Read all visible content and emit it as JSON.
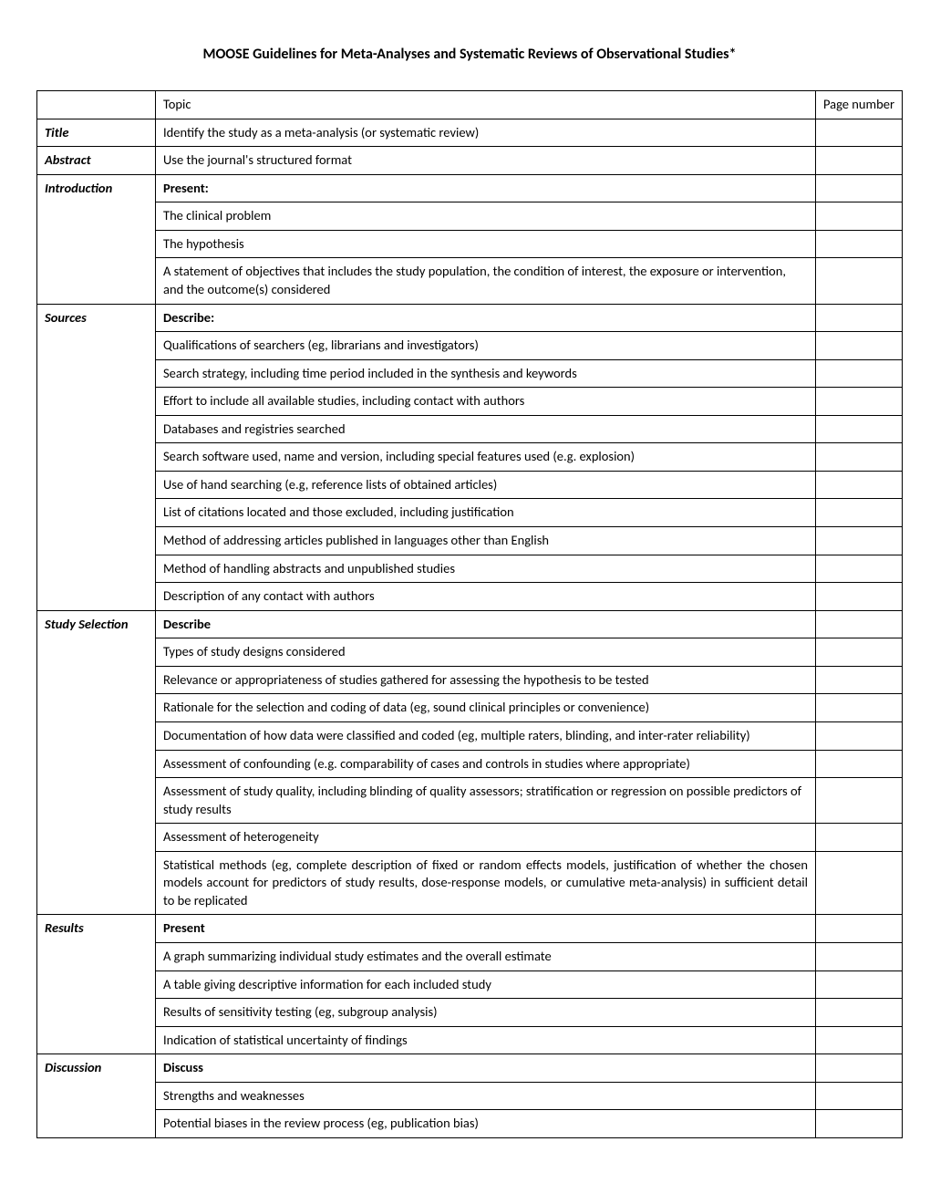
{
  "document": {
    "title": "MOOSE Guidelines for Meta-Analyses and Systematic Reviews of Observational Studies*",
    "header_topic": "Topic",
    "header_page": "Page number",
    "sections": [
      {
        "label": "Title",
        "rows": [
          {
            "text": "Identify the study as a meta-analysis (or systematic review)"
          }
        ]
      },
      {
        "label": "Abstract",
        "rows": [
          {
            "text": "Use the journal's structured format"
          }
        ]
      },
      {
        "label": "Introduction",
        "rows": [
          {
            "text": "Present:",
            "bold": true
          },
          {
            "text": "The clinical problem"
          },
          {
            "text": "The hypothesis"
          },
          {
            "text": "A statement of objectives that includes the study population, the condition of interest, the exposure or intervention, and the outcome(s) considered"
          }
        ]
      },
      {
        "label": "Sources",
        "rows": [
          {
            "text": "Describe:",
            "bold": true
          },
          {
            "text": "Qualifications of searchers (eg, librarians and investigators)"
          },
          {
            "text": "Search strategy, including time period included in the synthesis and keywords"
          },
          {
            "text": "Effort to include all available studies, including contact with authors"
          },
          {
            "text": "Databases and registries searched"
          },
          {
            "text": "Search software used, name and version, including special features used (e.g. explosion)"
          },
          {
            "text": "Use of hand searching (e.g, reference lists of obtained articles)"
          },
          {
            "text": "List of citations located and those excluded, including justification"
          },
          {
            "text": "Method of addressing articles published in languages other than English"
          },
          {
            "text": "Method of handling abstracts and unpublished studies"
          },
          {
            "text": "Description of any contact with authors"
          }
        ]
      },
      {
        "label": "Study Selection",
        "rows": [
          {
            "text": "Describe",
            "bold": true
          },
          {
            "text": "Types of study designs considered"
          },
          {
            "text": "Relevance or appropriateness of studies gathered for assessing the hypothesis to be tested"
          },
          {
            "text": "Rationale for the selection and coding of data (eg, sound clinical principles or convenience)"
          },
          {
            "text": "Documentation of how data were classified and coded (eg, multiple raters, blinding, and inter-rater reliability)"
          },
          {
            "text": "Assessment of confounding (e.g. comparability of cases and controls in studies where appropriate)"
          },
          {
            "text": "Assessment of study quality, including blinding of quality assessors; stratification or regression on possible predictors of study results"
          },
          {
            "text": "Assessment of heterogeneity"
          },
          {
            "text": "Statistical methods (eg, complete description of fixed or random effects models, justification of whether the chosen models account for predictors of study results, dose-response models, or cumulative meta-analysis) in sufficient detail to be replicated",
            "justified": true
          }
        ]
      },
      {
        "label": "Results",
        "rows": [
          {
            "text": "Present",
            "bold": true
          },
          {
            "text": "A graph summarizing individual study estimates and the overall estimate"
          },
          {
            "text": "A table giving descriptive information for each included study"
          },
          {
            "text": "Results of sensitivity testing (eg, subgroup analysis)"
          },
          {
            "text": "Indication of statistical uncertainty of findings"
          }
        ]
      },
      {
        "label": "Discussion",
        "rows": [
          {
            "text": "Discuss",
            "bold": true
          },
          {
            "text": "Strengths and weaknesses"
          },
          {
            "text": "Potential biases in the review process (eg, publication bias)"
          }
        ]
      }
    ]
  }
}
